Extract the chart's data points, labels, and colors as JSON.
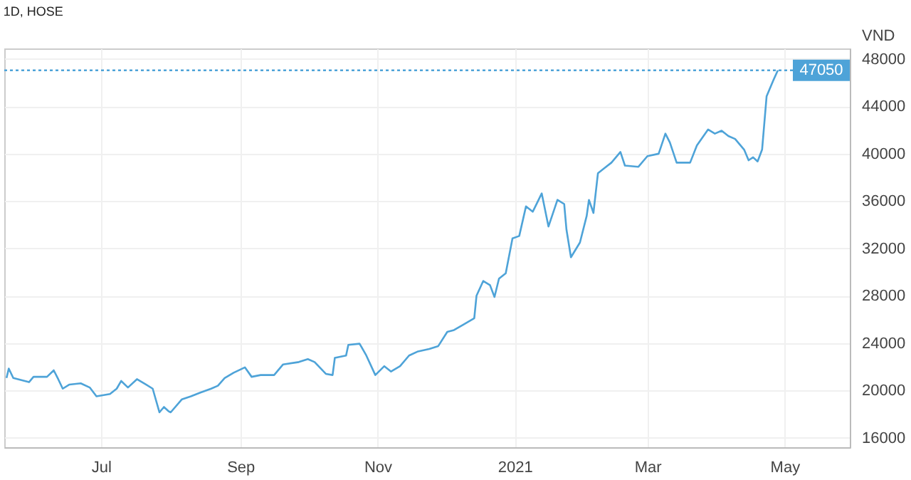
{
  "chart_data": {
    "type": "line",
    "title": "1D, HOSE",
    "ylabel": "VND",
    "x": [
      "2020-05-20",
      "2020-05-21",
      "2020-05-23",
      "2020-05-30",
      "2020-06-01",
      "2020-06-07",
      "2020-06-10",
      "2020-06-12",
      "2020-06-14",
      "2020-06-17",
      "2020-06-22",
      "2020-06-26",
      "2020-06-29",
      "2020-07-05",
      "2020-07-08",
      "2020-07-10",
      "2020-07-13",
      "2020-07-17",
      "2020-07-21",
      "2020-07-24",
      "2020-07-27",
      "2020-07-29",
      "2020-07-31",
      "2020-08-01",
      "2020-08-06",
      "2020-08-10",
      "2020-08-14",
      "2020-08-19",
      "2020-08-22",
      "2020-08-25",
      "2020-08-29",
      "2020-09-03",
      "2020-09-06",
      "2020-09-10",
      "2020-09-16",
      "2020-09-20",
      "2020-09-27",
      "2020-10-01",
      "2020-10-04",
      "2020-10-09",
      "2020-10-12",
      "2020-10-13",
      "2020-10-18",
      "2020-10-19",
      "2020-10-24",
      "2020-10-27",
      "2020-10-31",
      "2020-11-04",
      "2020-11-07",
      "2020-11-11",
      "2020-11-15",
      "2020-11-19",
      "2020-11-24",
      "2020-11-28",
      "2020-12-02",
      "2020-12-05",
      "2020-12-09",
      "2020-12-14",
      "2020-12-15",
      "2020-12-18",
      "2020-12-21",
      "2020-12-23",
      "2020-12-25",
      "2020-12-28",
      "2020-12-31",
      "2021-01-03",
      "2021-01-06",
      "2021-01-09",
      "2021-01-13",
      "2021-01-16",
      "2021-01-20",
      "2021-01-23",
      "2021-01-24",
      "2021-01-26",
      "2021-01-30",
      "2021-02-02",
      "2021-02-03",
      "2021-02-05",
      "2021-02-07",
      "2021-02-10",
      "2021-02-13",
      "2021-02-17",
      "2021-02-19",
      "2021-02-25",
      "2021-03-01",
      "2021-03-06",
      "2021-03-09",
      "2021-03-11",
      "2021-03-14",
      "2021-03-20",
      "2021-03-23",
      "2021-03-28",
      "2021-03-31",
      "2021-04-03",
      "2021-04-06",
      "2021-04-09",
      "2021-04-13",
      "2021-04-15",
      "2021-04-17",
      "2021-04-19",
      "2021-04-21",
      "2021-04-23",
      "2021-04-26",
      "2021-04-28"
    ],
    "series": [
      {
        "color": "#4ea3d8",
        "values": [
          21050,
          21850,
          21050,
          20700,
          21150,
          21150,
          21700,
          20950,
          20150,
          20500,
          20600,
          20250,
          19500,
          19700,
          20150,
          20800,
          20250,
          20950,
          20500,
          20150,
          18150,
          18600,
          18250,
          18150,
          19250,
          19500,
          19800,
          20150,
          20400,
          21050,
          21500,
          21950,
          21150,
          21300,
          21300,
          22200,
          22400,
          22650,
          22400,
          21400,
          21300,
          22750,
          22950,
          23850,
          23950,
          22950,
          21300,
          22050,
          21600,
          22050,
          22950,
          23300,
          23500,
          23750,
          24950,
          25100,
          25550,
          26100,
          28000,
          29250,
          28900,
          27900,
          29450,
          29900,
          32850,
          33050,
          35550,
          35100,
          36650,
          33850,
          36100,
          35750,
          33600,
          31250,
          32500,
          34750,
          36100,
          35000,
          38350,
          38800,
          39250,
          40150,
          39000,
          38900,
          39800,
          40000,
          41700,
          40950,
          39250,
          39250,
          40700,
          42050,
          41700,
          41950,
          41500,
          41250,
          40350,
          39450,
          39700,
          39350,
          40350,
          44850,
          46200,
          47050
        ]
      }
    ],
    "xlim": [
      "2020-05-19",
      "2021-05-30"
    ],
    "xticks": [
      {
        "value": "2020-07-01",
        "label": "Jul"
      },
      {
        "value": "2020-09-01",
        "label": "Sep"
      },
      {
        "value": "2020-11-01",
        "label": "Nov"
      },
      {
        "value": "2021-01-01",
        "label": "2021"
      },
      {
        "value": "2021-03-01",
        "label": "Mar"
      },
      {
        "value": "2021-05-01",
        "label": "May"
      }
    ],
    "ylim": [
      15200,
      48900
    ],
    "yticks": [
      16000,
      20000,
      24000,
      28000,
      32000,
      36000,
      40000,
      44000,
      48000
    ],
    "ref_lines": [
      {
        "axis": "y",
        "value": 47050,
        "label": "47050",
        "color": "#4ea3d8",
        "line_style": "dotted"
      }
    ],
    "grid": true
  }
}
